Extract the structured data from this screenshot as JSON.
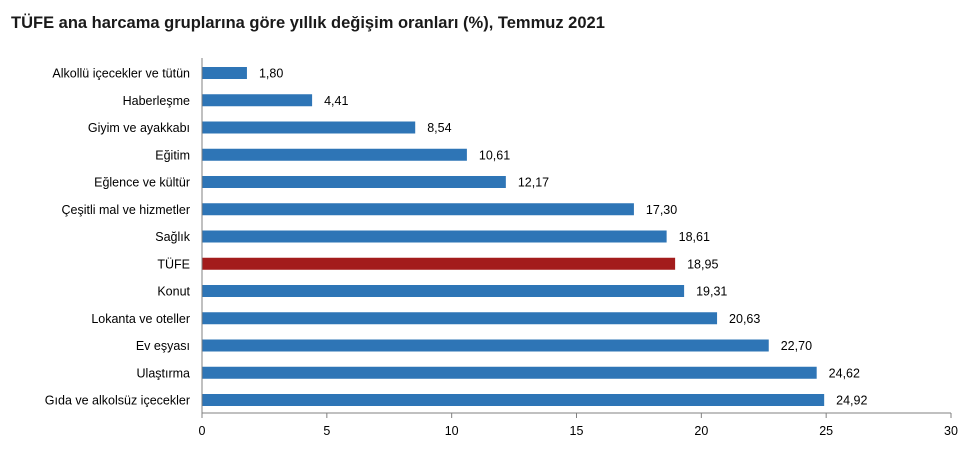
{
  "chart_data": {
    "type": "bar",
    "orientation": "horizontal",
    "title": "TÜFE ana harcama gruplarına göre yıllık değişim oranları (%), Temmuz 2021",
    "categories": [
      "Alkollü içecekler ve tütün",
      "Haberleşme",
      "Giyim ve ayakkabı",
      "Eğitim",
      "Eğlence ve kültür",
      "Çeşitli mal ve hizmetler",
      "Sağlık",
      "TÜFE",
      "Konut",
      "Lokanta ve oteller",
      "Ev eşyası",
      "Ulaştırma",
      "Gıda ve alkolsüz içecekler"
    ],
    "values": [
      1.8,
      4.41,
      8.54,
      10.61,
      12.17,
      17.3,
      18.61,
      18.95,
      19.31,
      20.63,
      22.7,
      24.62,
      24.92
    ],
    "value_labels": [
      "1,80",
      "4,41",
      "8,54",
      "10,61",
      "12,17",
      "17,30",
      "18,61",
      "18,95",
      "19,31",
      "20,63",
      "22,70",
      "24,62",
      "24,92"
    ],
    "xlim": [
      0,
      30
    ],
    "xticks": [
      0,
      5,
      10,
      15,
      20,
      25,
      30
    ],
    "grid": false,
    "legend": "none",
    "colors": {
      "bar": "#2e75b6",
      "highlight": "#a31c1c",
      "highlight_category": "TÜFE",
      "axis": "#808080"
    }
  }
}
